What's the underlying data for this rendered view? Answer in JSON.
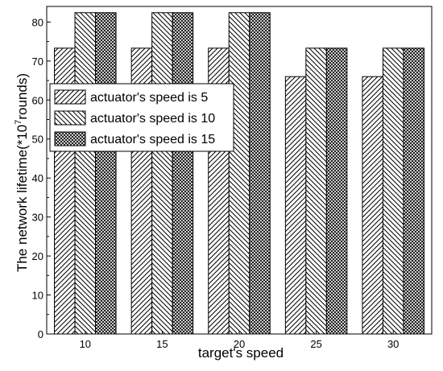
{
  "chart_data": {
    "type": "bar",
    "categories": [
      "10",
      "15",
      "20",
      "25",
      "30"
    ],
    "series": [
      {
        "name": "actuator's speed is 5",
        "pattern": "diag-right",
        "values": [
          73.3,
          73.3,
          73.3,
          66,
          66
        ]
      },
      {
        "name": "actuator's speed is 10",
        "pattern": "diag-left",
        "values": [
          82.4,
          82.4,
          82.4,
          73.3,
          73.3
        ]
      },
      {
        "name": "actuator's speed is 15",
        "pattern": "crosshatch",
        "values": [
          82.4,
          82.4,
          82.4,
          73.3,
          73.3
        ]
      }
    ],
    "xlabel": "target's speed",
    "ylabel_main": "The network lifetime(*10",
    "ylabel_sup": "7",
    "ylabel_end": "rounds)",
    "ylim": [
      0,
      84
    ],
    "yticks": [
      "0",
      "10",
      "20",
      "30",
      "40",
      "50",
      "60",
      "70",
      "80"
    ],
    "legend_position": "upper-left",
    "grid": false,
    "bar_color": "#000000",
    "background": "#ffffff"
  }
}
